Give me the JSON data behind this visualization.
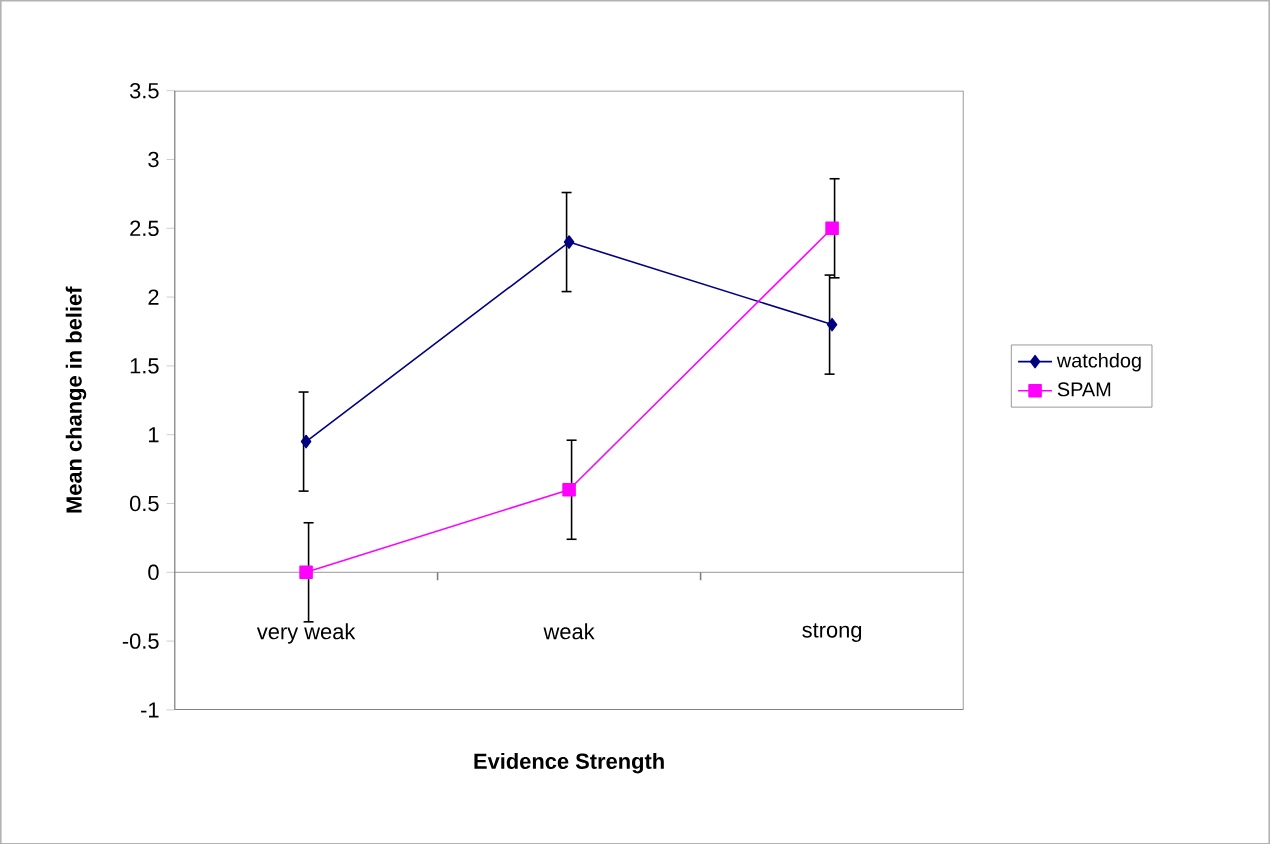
{
  "chart_data": {
    "type": "line",
    "xlabel": "Evidence Strength",
    "ylabel": "Mean change in belief",
    "categories": [
      "very weak",
      "weak",
      "strong"
    ],
    "series": [
      {
        "name": "watchdog",
        "color": "#000080",
        "marker": "diamond",
        "values": [
          0.95,
          2.4,
          1.8
        ],
        "errors": [
          0.36,
          0.36,
          0.36
        ]
      },
      {
        "name": "SPAM",
        "color": "#ff00ff",
        "marker": "square",
        "values": [
          0,
          0.6,
          2.5
        ],
        "errors": [
          0.36,
          0.36,
          0.36
        ]
      }
    ],
    "ylim": [
      -1,
      3.5
    ],
    "yticks": [
      -1,
      -0.5,
      0,
      0.5,
      1,
      1.5,
      2,
      2.5,
      3,
      3.5
    ],
    "legend": "right"
  }
}
